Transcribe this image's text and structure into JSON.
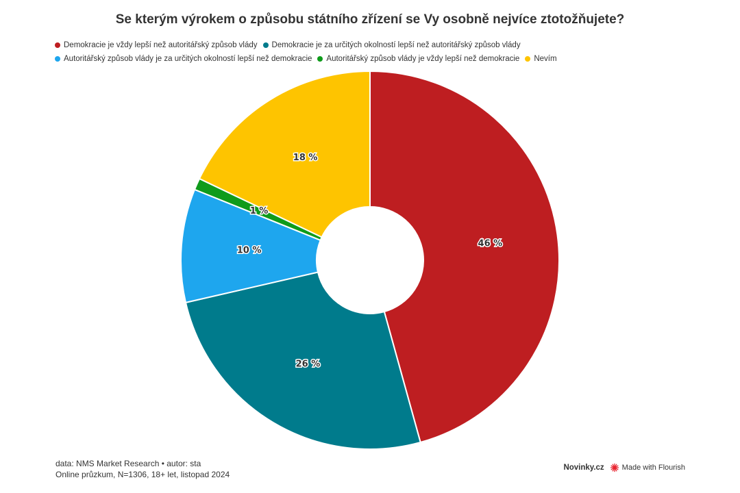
{
  "chart_data": {
    "type": "pie",
    "title": "Se kterým výrokem o způsobu státního zřízení se Vy osobně nejvíce ztotožňujete?",
    "categories": [
      "Demokracie je vždy lepší než autoritářský způsob vlády",
      "Demokracie je za určitých okolností lepší než autoritářský způsob vlády",
      "Autoritářský způsob vlády je za určitých okolností lepší než demokracie",
      "Autoritářský způsob vlády je vždy lepší než demokracie",
      "Nevím"
    ],
    "values": [
      45.7,
      25.7,
      9.7,
      1.0,
      17.9
    ],
    "labels": [
      "46 %",
      "26 %",
      "10 %",
      "1 %",
      "18 %"
    ],
    "colors": [
      "#be1e21",
      "#007b8c",
      "#1ea6ee",
      "#0f9b1b",
      "#fec400"
    ],
    "donut": true,
    "legend_position": "top-left"
  },
  "footer": {
    "source": "data: NMS Market Research • autor: sta",
    "note": "Online průzkum, N=1306, 18+ let, listopad 2024"
  },
  "branding": {
    "site": "Novinky.cz",
    "flourish": "Made with Flourish",
    "flourish_icon": "flourish-burst-icon",
    "flourish_color": "#e8212c"
  }
}
